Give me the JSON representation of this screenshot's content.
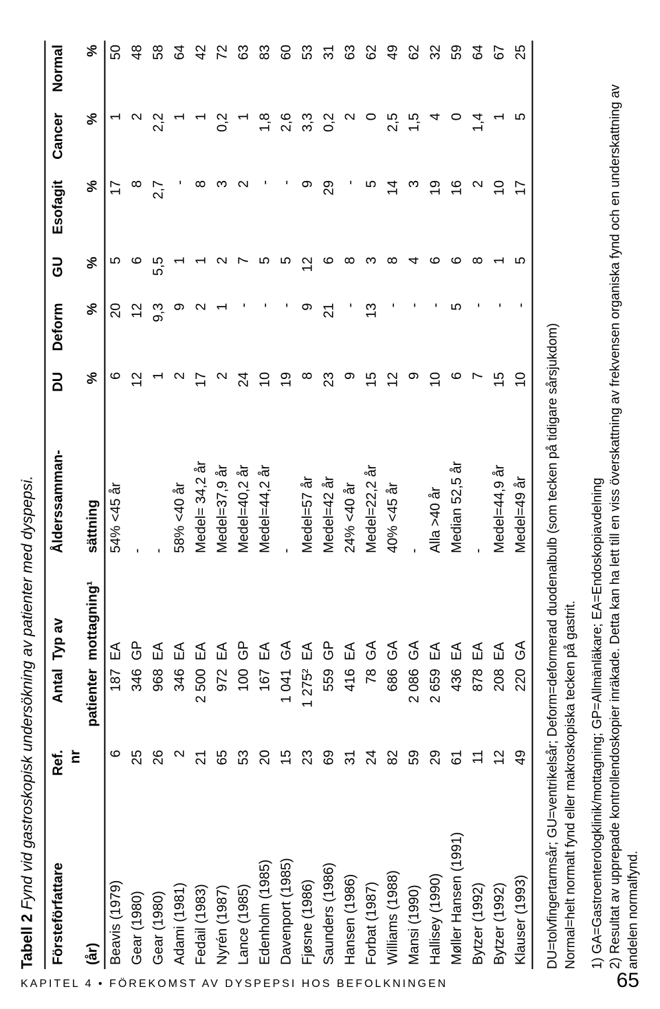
{
  "caption": {
    "label": "Tabell 2",
    "title": "Fynd vid gastroskopisk undersökning av patienter med dyspepsi."
  },
  "headers": {
    "author": "Försteförfattare",
    "author_sub": "(år)",
    "ref": "Ref. nr",
    "n": "Antal",
    "n_sub": "patienter",
    "typ": "Typ av",
    "typ_sub": "mottagning¹",
    "age": "Ålderssamman-",
    "age_sub": "sättning",
    "du": "DU",
    "pct": "%",
    "deform": "Deform",
    "gu": "GU",
    "esofagit": "Esofagit",
    "cancer": "Cancer",
    "normal": "Normal"
  },
  "rows": [
    {
      "a": "Beavis (1979)",
      "ref": "6",
      "n": "187",
      "typ": "EA",
      "age": "54% <45 år",
      "du": "6",
      "def": "20",
      "gu": "5",
      "eso": "17",
      "can": "1",
      "norm": "50"
    },
    {
      "a": "Gear (1980)",
      "ref": "25",
      "n": "346",
      "typ": "GP",
      "age": "-",
      "du": "12",
      "def": "12",
      "gu": "6",
      "eso": "8",
      "can": "2",
      "norm": "48"
    },
    {
      "a": "Gear (1980)",
      "ref": "26",
      "n": "968",
      "typ": "EA",
      "age": "-",
      "du": "1",
      "def": "9,3",
      "gu": "5,5",
      "eso": "2,7",
      "can": "2,2",
      "norm": "58"
    },
    {
      "a": "Adami (1981)",
      "ref": "2",
      "n": "346",
      "typ": "EA",
      "age": "58% <40 år",
      "du": "2",
      "def": "9",
      "gu": "1",
      "eso": "-",
      "can": "1",
      "norm": "64"
    },
    {
      "a": "Fedail (1983)",
      "ref": "21",
      "n": "2 500",
      "typ": "EA",
      "age": "Medel= 34,2 år",
      "du": "17",
      "def": "2",
      "gu": "1",
      "eso": "8",
      "can": "1",
      "norm": "42"
    },
    {
      "a": "Nyrén (1987)",
      "ref": "65",
      "n": "972",
      "typ": "EA",
      "age": "Medel=37,9 år",
      "du": "2",
      "def": "1",
      "gu": "2",
      "eso": "3",
      "can": "0,2",
      "norm": "72"
    },
    {
      "a": "Lance (1985)",
      "ref": "53",
      "n": "100",
      "typ": "GP",
      "age": "Medel=40,2 år",
      "du": "24",
      "def": "-",
      "gu": "7",
      "eso": "2",
      "can": "1",
      "norm": "63"
    },
    {
      "a": "Edenholm (1985)",
      "ref": "20",
      "n": "167",
      "typ": "EA",
      "age": "Medel=44,2 år",
      "du": "10",
      "def": "-",
      "gu": "5",
      "eso": "-",
      "can": "1,8",
      "norm": "83"
    },
    {
      "a": "Davenport (1985)",
      "ref": "15",
      "n": "1 041",
      "typ": "GA",
      "age": "-",
      "du": "19",
      "def": "-",
      "gu": "5",
      "eso": "-",
      "can": "2,6",
      "norm": "60"
    },
    {
      "a": "Fjøsne (1986)",
      "ref": "23",
      "n": "1 275²",
      "typ": "EA",
      "age": "Medel=57 år",
      "du": "8",
      "def": "9",
      "gu": "12",
      "eso": "9",
      "can": "3,3",
      "norm": "53"
    },
    {
      "a": "Saunders (1986)",
      "ref": "69",
      "n": "559",
      "typ": "GP",
      "age": "Medel=42 år",
      "du": "23",
      "def": "21",
      "gu": "6",
      "eso": "29",
      "can": "0,2",
      "norm": "31"
    },
    {
      "a": "Hansen (1986)",
      "ref": "31",
      "n": "416",
      "typ": "EA",
      "age": "24% <40 år",
      "du": "9",
      "def": "-",
      "gu": "8",
      "eso": "-",
      "can": "2",
      "norm": "63"
    },
    {
      "a": "Forbat (1987)",
      "ref": "24",
      "n": "78",
      "typ": "GA",
      "age": "Medel=22,2 år",
      "du": "15",
      "def": "13",
      "gu": "3",
      "eso": "5",
      "can": "0",
      "norm": "62"
    },
    {
      "a": "Williams (1988)",
      "ref": "82",
      "n": "686",
      "typ": "GA",
      "age": "40% <45 år",
      "du": "12",
      "def": "-",
      "gu": "8",
      "eso": "14",
      "can": "2,5",
      "norm": "49"
    },
    {
      "a": "Mansi (1990)",
      "ref": "59",
      "n": "2 086",
      "typ": "GA",
      "age": "-",
      "du": "9",
      "def": "-",
      "gu": "4",
      "eso": "3",
      "can": "1,5",
      "norm": "62"
    },
    {
      "a": "Hallisey (1990)",
      "ref": "29",
      "n": "2 659",
      "typ": "EA",
      "age": "Alla >40 år",
      "du": "10",
      "def": "-",
      "gu": "6",
      "eso": "19",
      "can": "4",
      "norm": "32"
    },
    {
      "a": "Møller Hansen (1991)",
      "ref": "61",
      "n": "436",
      "typ": "EA",
      "age": "Median 52,5 år",
      "du": "6",
      "def": "5",
      "gu": "6",
      "eso": "16",
      "can": "0",
      "norm": "59"
    },
    {
      "a": "Bytzer (1992)",
      "ref": "11",
      "n": "878",
      "typ": "EA",
      "age": "-",
      "du": "7",
      "def": "-",
      "gu": "8",
      "eso": "2",
      "can": "1,4",
      "norm": "64"
    },
    {
      "a": "Bytzer (1992)",
      "ref": "12",
      "n": "208",
      "typ": "EA",
      "age": "Medel=44,9 år",
      "du": "15",
      "def": "-",
      "gu": "1",
      "eso": "10",
      "can": "1",
      "norm": "67"
    },
    {
      "a": "Klauser (1993)",
      "ref": "49",
      "n": "220",
      "typ": "GA",
      "age": "Medel=49 år",
      "du": "10",
      "def": "-",
      "gu": "5",
      "eso": "17",
      "can": "5",
      "norm": "25"
    }
  ],
  "legend": {
    "l1": "DU=tolvfingertarmsår; GU=ventrikelsår; Deform=deformerad duodenalbulb (som tecken på tidigare sårsjukdom)",
    "l2": "Normal=helt normalt fynd eller makroskopiska tecken på gastrit.",
    "l3": "1) GA=Gastroenterologklinik/mottagning; GP=Allmänläkare; EA=Endoskopiavdelning",
    "l4": "2) Resultat av upprepade kontrollendoskopier inräkade. Detta kan ha lett till en viss överskattning av frekvensen organiska fynd och en underskattning av andelen normalfynd."
  },
  "footer": {
    "chapter": "KAPITEL 4 • FÖREKOMST AV DYSPEPSI HOS BEFOLKNINGEN",
    "page": "65"
  }
}
